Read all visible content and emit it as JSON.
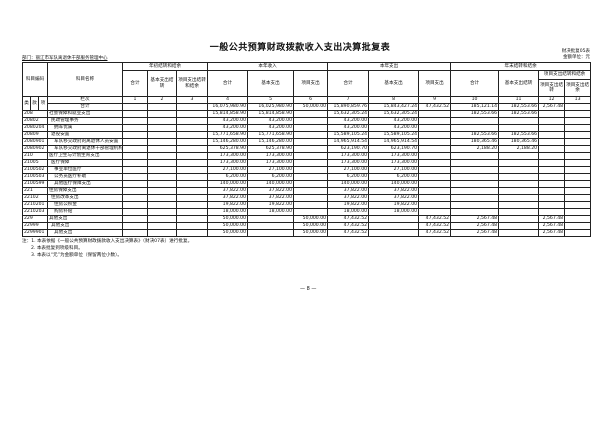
{
  "title": "一般公共预算财政拨款收入支出决算批复表",
  "department": "部门：丽江市军队离退休干部服务管理中心",
  "form_no": "财决批复05表",
  "unit": "金额单位：元",
  "headers": {
    "code": "科目编码",
    "name": "科目名称",
    "opening": "年初结转和结余",
    "income": "本年收入",
    "expense": "本年支出",
    "closing": "年末结转和结余",
    "total": "合计",
    "basic_carry": "基本支出结转",
    "project_carry_balance": "项目支出结转和结余",
    "basic": "基本支出",
    "project": "项目支出",
    "basic_carry_closing": "基本支出结转",
    "project_group": "项目支出结转和结余",
    "project_carry": "项目支出结转",
    "project_balance": "项目支出结余",
    "lei": "类",
    "kuan": "款",
    "xiang": "项",
    "col_index": "栏次",
    "sum_label": "合计"
  },
  "col_numbers": [
    "1",
    "2",
    "3",
    "4",
    "5",
    "6",
    "7",
    "8",
    "9",
    "10",
    "11",
    "12",
    "13"
  ],
  "totals": [
    "",
    "",
    "",
    "16,075,980.90",
    "16,025,980.90",
    "50,000.00",
    "15,890,859.76",
    "15,843,427.24",
    "47,432.52",
    "185,121.14",
    "182,553.66",
    "2,567.48",
    ""
  ],
  "rows": [
    {
      "code": "208",
      "name": "社会保障和就业支出",
      "level": 1,
      "values": [
        "",
        "",
        "",
        "15,814,858.90",
        "15,814,858.90",
        "",
        "15,632,305.24",
        "15,632,305.24",
        "",
        "182,553.66",
        "182,553.66",
        "",
        ""
      ]
    },
    {
      "code": "20802",
      "name": "民政管理事务",
      "level": 2,
      "values": [
        "",
        "",
        "",
        "43,200.00",
        "43,200.00",
        "",
        "43,200.00",
        "43,200.00",
        "",
        "",
        "",
        "",
        ""
      ]
    },
    {
      "code": "2080204",
      "name": "拥军优属",
      "level": 3,
      "values": [
        "",
        "",
        "",
        "43,200.00",
        "43,200.00",
        "",
        "43,200.00",
        "43,200.00",
        "",
        "",
        "",
        "",
        ""
      ]
    },
    {
      "code": "20809",
      "name": "退役安置",
      "level": 2,
      "values": [
        "",
        "",
        "",
        "15,771,658.90",
        "15,771,658.90",
        "",
        "15,589,105.24",
        "15,589,105.24",
        "",
        "182,553.66",
        "182,553.66",
        "",
        ""
      ]
    },
    {
      "code": "2080901",
      "name": "军队移交政府的离退休人员安置",
      "level": 3,
      "values": [
        "",
        "",
        "",
        "15,146,280.00",
        "15,146,280.00",
        "",
        "14,965,914.54",
        "14,965,914.54",
        "",
        "180,365.46",
        "180,365.46",
        "",
        ""
      ]
    },
    {
      "code": "2080902",
      "name": "军队移交政府离退休干部管理机构",
      "level": 3,
      "values": [
        "",
        "",
        "",
        "625,378.90",
        "625,378.90",
        "",
        "623,190.70",
        "623,190.70",
        "",
        "2,188.20",
        "2,188.20",
        "",
        ""
      ]
    },
    {
      "code": "210",
      "name": "医疗卫生与计划生育支出",
      "level": 1,
      "values": [
        "",
        "",
        "",
        "173,300.00",
        "173,300.00",
        "",
        "173,300.00",
        "173,300.00",
        "",
        "",
        "",
        "",
        ""
      ]
    },
    {
      "code": "21005",
      "name": "医疗保障",
      "level": 2,
      "values": [
        "",
        "",
        "",
        "173,300.00",
        "173,300.00",
        "",
        "173,300.00",
        "173,300.00",
        "",
        "",
        "",
        "",
        ""
      ]
    },
    {
      "code": "2100502",
      "name": "事业单位医疗",
      "level": 3,
      "values": [
        "",
        "",
        "",
        "27,100.00",
        "27,100.00",
        "",
        "27,100.00",
        "27,100.00",
        "",
        "",
        "",
        "",
        ""
      ]
    },
    {
      "code": "2100503",
      "name": "公务员医疗补助",
      "level": 3,
      "values": [
        "",
        "",
        "",
        "6,200.00",
        "6,200.00",
        "",
        "6,200.00",
        "6,200.00",
        "",
        "",
        "",
        "",
        ""
      ]
    },
    {
      "code": "2100599",
      "name": "其他医疗保障支出",
      "level": 3,
      "values": [
        "",
        "",
        "",
        "140,000.00",
        "140,000.00",
        "",
        "140,000.00",
        "140,000.00",
        "",
        "",
        "",
        "",
        ""
      ]
    },
    {
      "code": "221",
      "name": "住房保障支出",
      "level": 1,
      "values": [
        "",
        "",
        "",
        "37,822.00",
        "37,822.00",
        "",
        "37,822.00",
        "37,822.00",
        "",
        "",
        "",
        "",
        ""
      ]
    },
    {
      "code": "22102",
      "name": "住房改革支出",
      "level": 2,
      "values": [
        "",
        "",
        "",
        "37,822.00",
        "37,822.00",
        "",
        "37,822.00",
        "37,822.00",
        "",
        "",
        "",
        "",
        ""
      ]
    },
    {
      "code": "2210201",
      "name": "住房公积金",
      "level": 3,
      "values": [
        "",
        "",
        "",
        "19,822.00",
        "19,822.00",
        "",
        "19,822.00",
        "19,822.00",
        "",
        "",
        "",
        "",
        ""
      ]
    },
    {
      "code": "2210203",
      "name": "购房补贴",
      "level": 3,
      "values": [
        "",
        "",
        "",
        "18,000.00",
        "18,000.00",
        "",
        "18,000.00",
        "18,000.00",
        "",
        "",
        "",
        "",
        ""
      ]
    },
    {
      "code": "229",
      "name": "其他支出",
      "level": 1,
      "values": [
        "",
        "",
        "",
        "50,000.00",
        "",
        "50,000.00",
        "47,432.52",
        "",
        "47,432.52",
        "2,567.48",
        "",
        "2,567.48",
        ""
      ]
    },
    {
      "code": "22999",
      "name": "其他支出",
      "level": 2,
      "values": [
        "",
        "",
        "",
        "50,000.00",
        "",
        "50,000.00",
        "47,432.52",
        "",
        "47,432.52",
        "2,567.48",
        "",
        "2,567.48",
        ""
      ]
    },
    {
      "code": "2299901",
      "name": "其他支出",
      "level": 3,
      "values": [
        "",
        "",
        "",
        "50,000.00",
        "",
        "50,000.00",
        "47,432.52",
        "",
        "47,432.52",
        "2,567.48",
        "",
        "2,567.48",
        ""
      ]
    }
  ],
  "notes": [
    "注：1. 本表依据《一般公共预算财政拨款收入支出决算表》（财决07表）进行批复。",
    "2. 本表批复到项级科目。",
    "3. 本表以“元”为金额单位（保留两位小数）。"
  ],
  "page_number": "— 8 —"
}
